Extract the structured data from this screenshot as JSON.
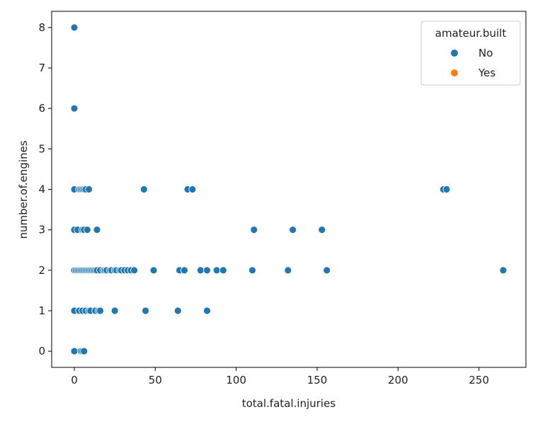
{
  "chart_data": {
    "type": "scatter",
    "xlabel": "total.fatal.injuries",
    "ylabel": "number.of.engines",
    "xlim": [
      -14,
      279
    ],
    "ylim": [
      -0.4,
      8.4
    ],
    "xticks": [
      0,
      50,
      100,
      150,
      200,
      250
    ],
    "xtick_labels": [
      "0",
      "50",
      "100",
      "150",
      "200",
      "250"
    ],
    "yticks": [
      0,
      1,
      2,
      3,
      4,
      5,
      6,
      7,
      8
    ],
    "ytick_labels": [
      "0",
      "1",
      "2",
      "3",
      "4",
      "5",
      "6",
      "7",
      "8"
    ],
    "grid": false,
    "legend": {
      "title": "amateur.built",
      "placement": "top-right",
      "entries": [
        "No",
        "Yes"
      ]
    },
    "colors": {
      "No": "#1f77b4",
      "Yes": "#ff7f0e"
    },
    "series": [
      {
        "name": "No",
        "color": "#1f77b4",
        "points": [
          [
            0,
            8
          ],
          [
            0,
            6
          ],
          [
            0,
            4
          ],
          [
            3,
            4
          ],
          [
            4,
            4
          ],
          [
            5,
            4
          ],
          [
            6,
            4
          ],
          [
            7,
            4
          ],
          [
            9,
            4
          ],
          [
            43,
            4
          ],
          [
            70,
            4
          ],
          [
            73,
            4
          ],
          [
            228,
            4
          ],
          [
            230,
            4
          ],
          [
            0,
            3
          ],
          [
            2,
            3
          ],
          [
            5,
            3
          ],
          [
            6,
            3
          ],
          [
            8,
            3
          ],
          [
            14,
            3
          ],
          [
            111,
            3
          ],
          [
            135,
            3
          ],
          [
            153,
            3
          ],
          [
            0,
            2
          ],
          [
            1,
            2
          ],
          [
            2,
            2
          ],
          [
            3,
            2
          ],
          [
            4,
            2
          ],
          [
            5,
            2
          ],
          [
            6,
            2
          ],
          [
            7,
            2
          ],
          [
            8,
            2
          ],
          [
            9,
            2
          ],
          [
            10,
            2
          ],
          [
            11,
            2
          ],
          [
            12,
            2
          ],
          [
            13,
            2
          ],
          [
            14,
            2
          ],
          [
            16,
            2
          ],
          [
            18,
            2
          ],
          [
            19,
            2
          ],
          [
            20,
            2
          ],
          [
            22,
            2
          ],
          [
            23,
            2
          ],
          [
            25,
            2
          ],
          [
            26,
            2
          ],
          [
            28,
            2
          ],
          [
            29,
            2
          ],
          [
            31,
            2
          ],
          [
            33,
            2
          ],
          [
            35,
            2
          ],
          [
            37,
            2
          ],
          [
            49,
            2
          ],
          [
            65,
            2
          ],
          [
            68,
            2
          ],
          [
            78,
            2
          ],
          [
            82,
            2
          ],
          [
            88,
            2
          ],
          [
            92,
            2
          ],
          [
            110,
            2
          ],
          [
            132,
            2
          ],
          [
            156,
            2
          ],
          [
            265,
            2
          ],
          [
            0,
            1
          ],
          [
            3,
            1
          ],
          [
            5,
            1
          ],
          [
            7,
            1
          ],
          [
            9,
            1
          ],
          [
            10,
            1
          ],
          [
            13,
            1
          ],
          [
            15,
            1
          ],
          [
            16,
            1
          ],
          [
            25,
            1
          ],
          [
            44,
            1
          ],
          [
            64,
            1
          ],
          [
            82,
            1
          ],
          [
            0,
            0
          ],
          [
            4,
            0
          ],
          [
            5,
            0
          ],
          [
            6,
            0
          ]
        ]
      },
      {
        "name": "Yes",
        "color": "#ff7f0e",
        "points": []
      }
    ]
  }
}
